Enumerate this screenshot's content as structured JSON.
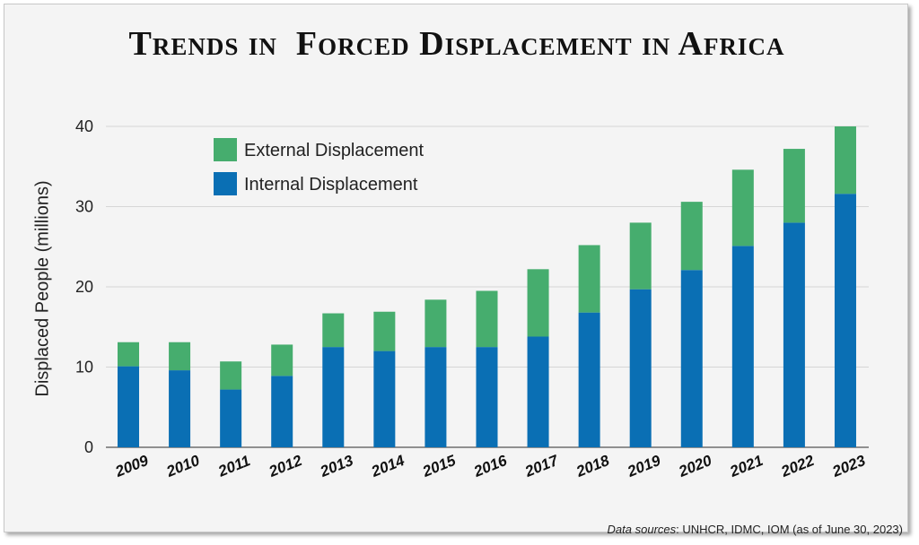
{
  "source": {
    "label": "Data sources",
    "text": ": UNHCR, IDMC, IOM (as of June 30, 2023)"
  },
  "colors": {
    "internal": "#0a6fb4",
    "external": "#46ad6e",
    "grid": "#d6d6d6",
    "axis": "#555555"
  },
  "chart_data": {
    "type": "bar",
    "stacked": true,
    "title": "Trends in  Forced Displacement in Africa",
    "ylabel": "Displaced People (millions)",
    "xlabel": "",
    "ylim": [
      0,
      40
    ],
    "yticks": [
      0,
      10,
      20,
      30,
      40
    ],
    "grid": true,
    "legend_position": "top-left",
    "categories": [
      "2009",
      "2010",
      "2011",
      "2012",
      "2013",
      "2014",
      "2015",
      "2016",
      "2017",
      "2018",
      "2019",
      "2020",
      "2021",
      "2022",
      "2023"
    ],
    "series": [
      {
        "name": "Internal Displacement",
        "color": "#0a6fb4",
        "values": [
          10.1,
          9.6,
          7.2,
          8.9,
          12.5,
          12.0,
          12.5,
          12.5,
          13.8,
          16.8,
          19.7,
          22.1,
          25.1,
          28.0,
          31.6
        ]
      },
      {
        "name": "External Displacement",
        "color": "#46ad6e",
        "values": [
          3.0,
          3.5,
          3.5,
          3.9,
          4.2,
          4.9,
          5.9,
          7.0,
          8.4,
          8.4,
          8.3,
          8.5,
          9.5,
          9.2,
          8.4
        ]
      }
    ],
    "legend_order": [
      1,
      0
    ]
  }
}
